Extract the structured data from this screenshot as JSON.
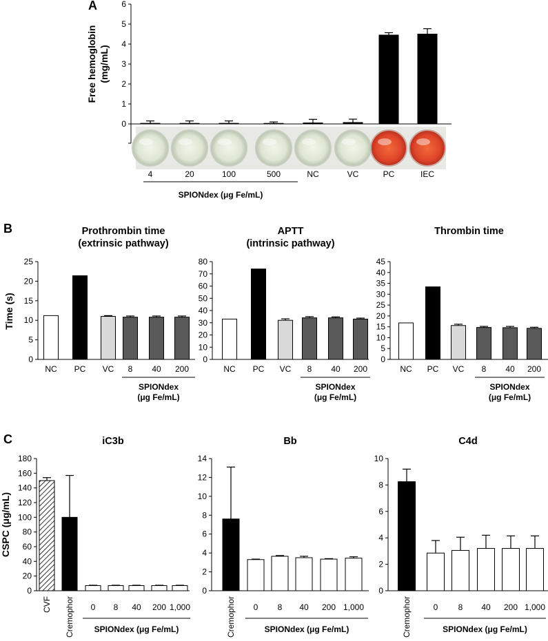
{
  "panel_labels": {
    "a": "A",
    "b": "B",
    "c": "C"
  },
  "colors": {
    "black": "#000000",
    "white": "#ffffff",
    "light_gray": "#d9d9d9",
    "dark_gray": "#595959",
    "hemolysis_red": "#e0462a",
    "well_clear": "#dfe6d4"
  },
  "chart_data": [
    {
      "id": "A",
      "type": "bar",
      "title": "",
      "ylabel": "Free hemoglobin\n(mg/mL)",
      "ylim": [
        0,
        6
      ],
      "yticks": [
        0,
        1,
        2,
        3,
        4,
        5,
        6
      ],
      "categories": [
        "4",
        "20",
        "100",
        "500",
        "NC",
        "VC",
        "PC",
        "IEC"
      ],
      "values": [
        0.03,
        0.02,
        0.03,
        0.02,
        0.05,
        0.07,
        4.45,
        4.5
      ],
      "errors": [
        0.12,
        0.13,
        0.12,
        0.08,
        0.18,
        0.17,
        0.12,
        0.27
      ],
      "fills": [
        "black",
        "black",
        "black",
        "black",
        "black",
        "black",
        "black",
        "black"
      ],
      "well_hemolysis": [
        false,
        false,
        false,
        false,
        false,
        false,
        true,
        true
      ],
      "group_label": "SPIONdex (μg Fe/mL)"
    },
    {
      "id": "B1",
      "type": "bar",
      "title": "Prothrombin time\n(extrinsic pathway)",
      "ylabel": "Time (s)",
      "ylim": [
        0,
        25
      ],
      "yticks": [
        0,
        5,
        10,
        15,
        20,
        25
      ],
      "categories": [
        "NC",
        "PC",
        "VC",
        "8",
        "40",
        "200"
      ],
      "values": [
        11.2,
        21.4,
        11.0,
        10.8,
        10.8,
        10.8
      ],
      "errors": [
        0,
        0,
        0.2,
        0.3,
        0.3,
        0.3
      ],
      "fills": [
        "white",
        "black",
        "light_gray",
        "dark_gray",
        "dark_gray",
        "dark_gray"
      ],
      "group_label": "SPIONdex\n(μg Fe/mL)"
    },
    {
      "id": "B2",
      "type": "bar",
      "title": "APTT\n(intrinsic pathway)",
      "ylabel": "",
      "ylim": [
        0,
        80
      ],
      "yticks": [
        0,
        10,
        20,
        30,
        40,
        50,
        60,
        70,
        80
      ],
      "categories": [
        "NC",
        "PC",
        "VC",
        "8",
        "40",
        "200"
      ],
      "values": [
        33,
        74,
        32,
        34,
        34,
        33
      ],
      "errors": [
        0,
        0,
        1.2,
        1.0,
        0.8,
        0.8
      ],
      "fills": [
        "white",
        "black",
        "light_gray",
        "dark_gray",
        "dark_gray",
        "dark_gray"
      ],
      "group_label": "SPIONdex\n(μg Fe/mL)"
    },
    {
      "id": "B3",
      "type": "bar",
      "title": "Thrombin time",
      "ylabel": "",
      "ylim": [
        0,
        45
      ],
      "yticks": [
        0,
        5,
        10,
        15,
        20,
        25,
        30,
        35,
        40,
        45
      ],
      "categories": [
        "NC",
        "PC",
        "VC",
        "8",
        "40",
        "200"
      ],
      "values": [
        16.8,
        33.4,
        15.6,
        14.7,
        14.6,
        14.3
      ],
      "errors": [
        0,
        0,
        0.6,
        0.5,
        0.6,
        0.5
      ],
      "fills": [
        "white",
        "black",
        "light_gray",
        "dark_gray",
        "dark_gray",
        "dark_gray"
      ],
      "group_label": "SPIONdex\n(μg Fe/mL)"
    },
    {
      "id": "C1",
      "type": "bar",
      "title": "iC3b",
      "ylabel": "CSPC (μg/mL)",
      "ylim": [
        0,
        180
      ],
      "yticks": [
        0,
        20,
        40,
        60,
        80,
        100,
        120,
        140,
        160,
        180
      ],
      "categories": [
        "CVF",
        "Cremophor",
        "0",
        "8",
        "40",
        "200",
        "1,000"
      ],
      "values": [
        150,
        100,
        7,
        7,
        7,
        7,
        7
      ],
      "errors": [
        4,
        57,
        0.5,
        0.5,
        0.5,
        0.5,
        0.5
      ],
      "fills": [
        "hatched",
        "black",
        "white",
        "white",
        "white",
        "white",
        "white"
      ],
      "group_label": "SPIONdex (μg Fe/mL)"
    },
    {
      "id": "C2",
      "type": "bar",
      "title": "Bb",
      "ylabel": "",
      "ylim": [
        0,
        14
      ],
      "yticks": [
        0,
        2,
        4,
        6,
        8,
        10,
        12,
        14
      ],
      "categories": [
        "Cremophor",
        "0",
        "8",
        "40",
        "200",
        "1,000"
      ],
      "values": [
        7.6,
        3.3,
        3.65,
        3.5,
        3.35,
        3.45
      ],
      "errors": [
        5.5,
        0.05,
        0.08,
        0.15,
        0.05,
        0.15
      ],
      "fills": [
        "black",
        "white",
        "white",
        "white",
        "white",
        "white"
      ],
      "group_label": "SPIONdex (μg Fe/mL)"
    },
    {
      "id": "C3",
      "type": "bar",
      "title": "C4d",
      "ylabel": "",
      "ylim": [
        0,
        10
      ],
      "yticks": [
        0,
        2,
        4,
        6,
        8,
        10
      ],
      "categories": [
        "Cremophor",
        "0",
        "8",
        "40",
        "200",
        "1,000"
      ],
      "values": [
        8.25,
        2.85,
        3.05,
        3.2,
        3.2,
        3.2
      ],
      "errors": [
        0.95,
        0.95,
        1.0,
        1.0,
        0.95,
        0.95
      ],
      "fills": [
        "black",
        "white",
        "white",
        "white",
        "white",
        "white"
      ],
      "group_label": "SPIONdex (μg Fe/mL)"
    }
  ]
}
